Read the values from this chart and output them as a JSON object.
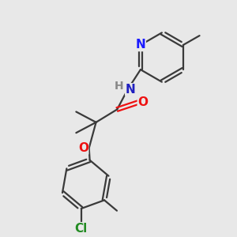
{
  "background_color": "#e8e8e8",
  "bond_color": "#3a3a3a",
  "bond_width": 1.6,
  "atom_colors": {
    "N_blue": "#1a1aff",
    "N_amide": "#2020c0",
    "O": "#ee1111",
    "Cl": "#228B22",
    "H": "#888888"
  },
  "figsize": [
    3.0,
    3.0
  ],
  "dpi": 100
}
